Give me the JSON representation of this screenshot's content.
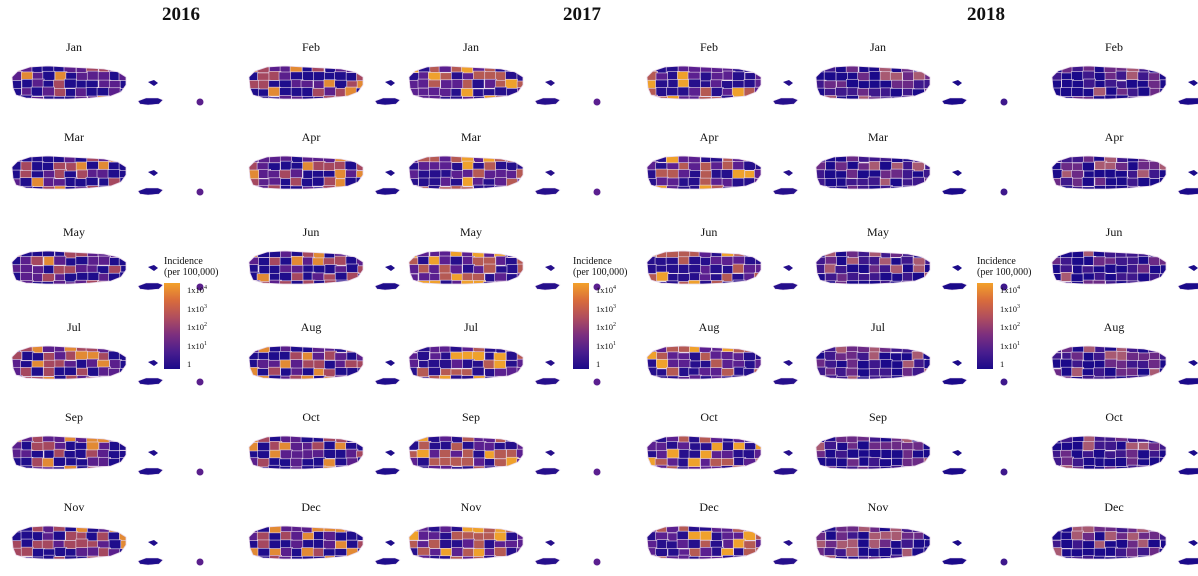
{
  "years": [
    {
      "label": "2016",
      "colors": [
        "#1f0d8c",
        "#5a1f8c",
        "#a5485f",
        "#e28a34"
      ]
    },
    {
      "label": "2017",
      "colors": [
        "#260f8c",
        "#5b2090",
        "#b55a54",
        "#efa12c"
      ]
    },
    {
      "label": "2018",
      "colors": [
        "#1b0a8a",
        "#3e188c",
        "#6b2a86",
        "#a85a72"
      ]
    }
  ],
  "months": [
    "Jan",
    "Feb",
    "Mar",
    "Apr",
    "May",
    "Jun",
    "Jul",
    "Aug",
    "Sep",
    "Oct",
    "Nov",
    "Dec"
  ],
  "legend": {
    "title_line1": "Incidence",
    "title_line2": "(per 100,000)",
    "ticks": [
      {
        "base": "1x10",
        "exp": "4"
      },
      {
        "base": "1x10",
        "exp": "3"
      },
      {
        "base": "1x10",
        "exp": "2"
      },
      {
        "base": "1x10",
        "exp": "1"
      },
      {
        "base": "1",
        "exp": ""
      }
    ],
    "gradient": [
      "#f3a12a",
      "#d96c3c",
      "#b04e5e",
      "#7d2f7e",
      "#4a1e8e",
      "#1b0a8a"
    ]
  }
}
